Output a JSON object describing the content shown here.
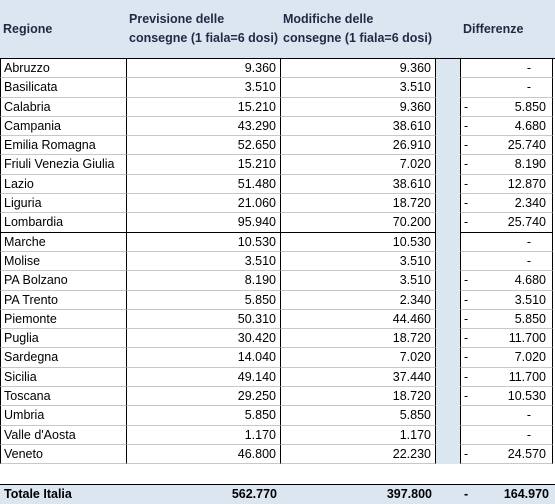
{
  "headers": {
    "regione": "Regione",
    "previsione_line1": "Previsione delle",
    "previsione_line2": "consegne (1 fiala=6 dosi)",
    "modifiche_line1": "Modifiche delle",
    "modifiche_line2": "consegne (1 fiala=6 dosi)",
    "differenze": "Differenze"
  },
  "rows": [
    {
      "regione": "Abruzzo",
      "previsione": "9.360",
      "modifiche": "9.360",
      "minus": "",
      "differenza": "-"
    },
    {
      "regione": "Basilicata",
      "previsione": "3.510",
      "modifiche": "3.510",
      "minus": "",
      "differenza": "-"
    },
    {
      "regione": "Calabria",
      "previsione": "15.210",
      "modifiche": "9.360",
      "minus": "-",
      "differenza": "5.850"
    },
    {
      "regione": "Campania",
      "previsione": "43.290",
      "modifiche": "38.610",
      "minus": "-",
      "differenza": "4.680"
    },
    {
      "regione": "Emilia Romagna",
      "previsione": "52.650",
      "modifiche": "26.910",
      "minus": "-",
      "differenza": "25.740"
    },
    {
      "regione": "Friuli Venezia Giulia",
      "previsione": "15.210",
      "modifiche": "7.020",
      "minus": "-",
      "differenza": "8.190"
    },
    {
      "regione": "Lazio",
      "previsione": "51.480",
      "modifiche": "38.610",
      "minus": "-",
      "differenza": "12.870"
    },
    {
      "regione": "Liguria",
      "previsione": "21.060",
      "modifiche": "18.720",
      "minus": "-",
      "differenza": "2.340"
    },
    {
      "regione": "Lombardia",
      "previsione": "95.940",
      "modifiche": "70.200",
      "minus": "-",
      "differenza": "25.740"
    },
    {
      "regione": "Marche",
      "previsione": "10.530",
      "modifiche": "10.530",
      "minus": "",
      "differenza": "-"
    },
    {
      "regione": "Molise",
      "previsione": "3.510",
      "modifiche": "3.510",
      "minus": "",
      "differenza": "-"
    },
    {
      "regione": "PA Bolzano",
      "previsione": "8.190",
      "modifiche": "3.510",
      "minus": "-",
      "differenza": "4.680"
    },
    {
      "regione": "PA Trento",
      "previsione": "5.850",
      "modifiche": "2.340",
      "minus": "-",
      "differenza": "3.510"
    },
    {
      "regione": "Piemonte",
      "previsione": "50.310",
      "modifiche": "44.460",
      "minus": "-",
      "differenza": "5.850"
    },
    {
      "regione": "Puglia",
      "previsione": "30.420",
      "modifiche": "18.720",
      "minus": "-",
      "differenza": "11.700"
    },
    {
      "regione": "Sardegna",
      "previsione": "14.040",
      "modifiche": "7.020",
      "minus": "-",
      "differenza": "7.020"
    },
    {
      "regione": "Sicilia",
      "previsione": "49.140",
      "modifiche": "37.440",
      "minus": "-",
      "differenza": "11.700"
    },
    {
      "regione": "Toscana",
      "previsione": "29.250",
      "modifiche": "18.720",
      "minus": "-",
      "differenza": "10.530"
    },
    {
      "regione": "Umbria",
      "previsione": "5.850",
      "modifiche": "5.850",
      "minus": "",
      "differenza": "-"
    },
    {
      "regione": "Valle d'Aosta",
      "previsione": "1.170",
      "modifiche": "1.170",
      "minus": "",
      "differenza": "-"
    },
    {
      "regione": "Veneto",
      "previsione": "46.800",
      "modifiche": "22.230",
      "minus": "-",
      "differenza": "24.570"
    }
  ],
  "total": {
    "label": "Totale Italia",
    "previsione": "562.770",
    "modifiche": "397.800",
    "minus": "-",
    "differenza": "164.970"
  }
}
